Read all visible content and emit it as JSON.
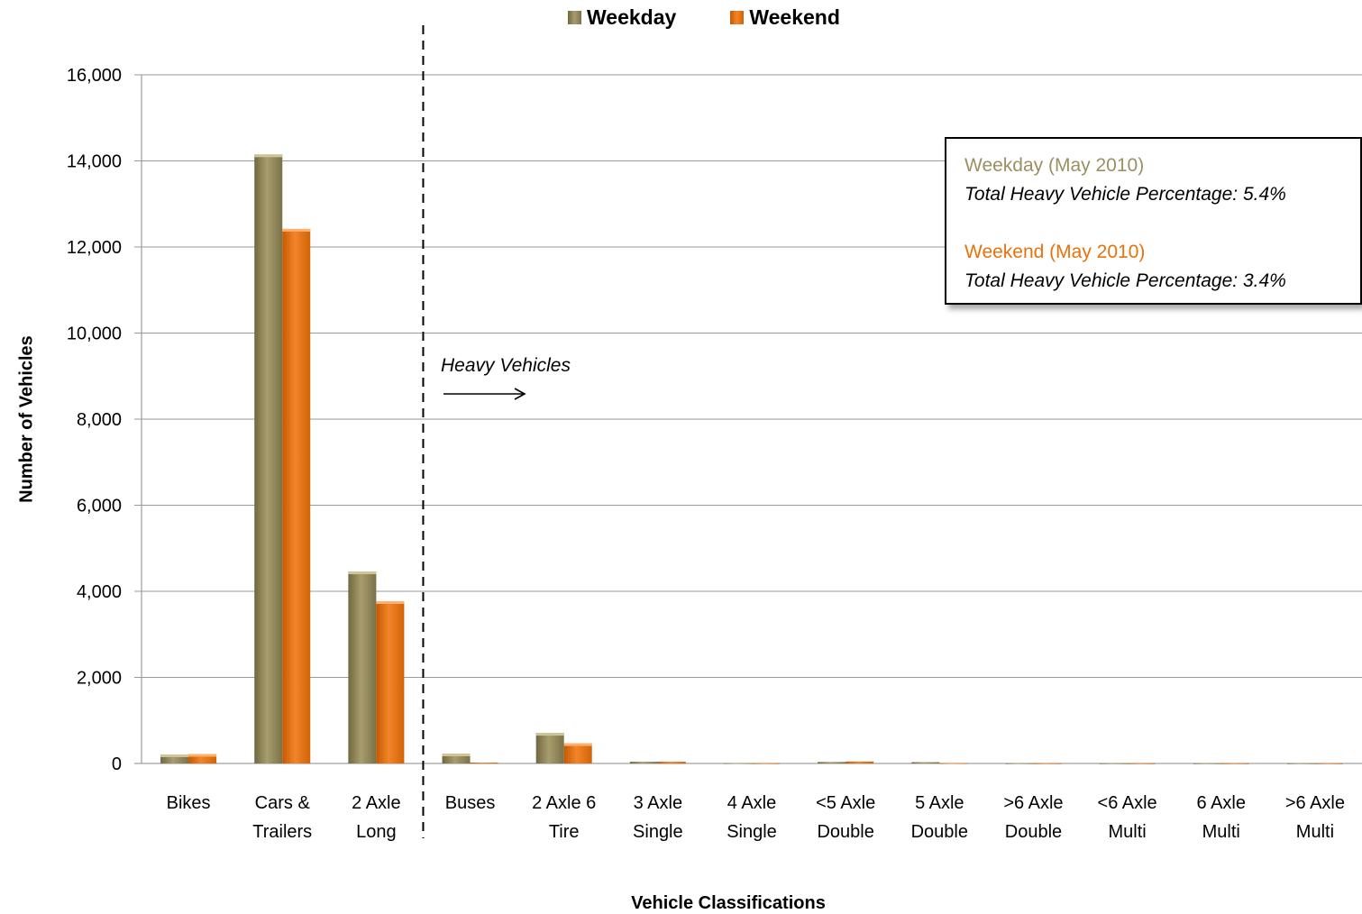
{
  "chart_data": {
    "type": "bar",
    "categories": [
      [
        "Bikes"
      ],
      [
        "Cars &",
        "Trailers"
      ],
      [
        "2 Axle",
        "Long"
      ],
      [
        "Buses"
      ],
      [
        "2 Axle 6",
        "Tire"
      ],
      [
        "3 Axle",
        "Single"
      ],
      [
        "4 Axle",
        "Single"
      ],
      [
        "<5 Axle",
        "Double"
      ],
      [
        "5 Axle",
        "Double"
      ],
      [
        ">6 Axle",
        "Double"
      ],
      [
        "<6 Axle",
        "Multi"
      ],
      [
        "6 Axle",
        "Multi"
      ],
      [
        ">6 Axle",
        "Multi"
      ]
    ],
    "series": [
      {
        "name": "Weekday",
        "color": "#9b9063",
        "values": [
          210,
          14150,
          4460,
          230,
          710,
          40,
          5,
          35,
          30,
          3,
          2,
          2,
          2
        ]
      },
      {
        "name": "Weekend",
        "color": "#e8720c",
        "values": [
          220,
          12420,
          3770,
          20,
          470,
          40,
          3,
          45,
          5,
          2,
          1,
          1,
          1
        ]
      }
    ],
    "xlabel": "Vehicle Classifications",
    "ylabel": "Number of Vehicles",
    "ylim": [
      0,
      16000
    ],
    "yticks": [
      0,
      2000,
      4000,
      6000,
      8000,
      10000,
      12000,
      14000,
      16000
    ],
    "ytick_labels": [
      "0",
      "2,000",
      "4,000",
      "6,000",
      "8,000",
      "10,000",
      "12,000",
      "14,000",
      "16,000"
    ],
    "grid": true,
    "legend": "top-center",
    "annotations": {
      "divider_after_category_index": 2,
      "heavy_label": "Heavy Vehicles",
      "box": {
        "weekday_title": "Weekday (May 2010)",
        "weekday_text": "Total Heavy Vehicle Percentage: 5.4%",
        "weekend_title": "Weekend (May 2010)",
        "weekend_text": "Total Heavy Vehicle Percentage: 3.4%"
      }
    }
  }
}
